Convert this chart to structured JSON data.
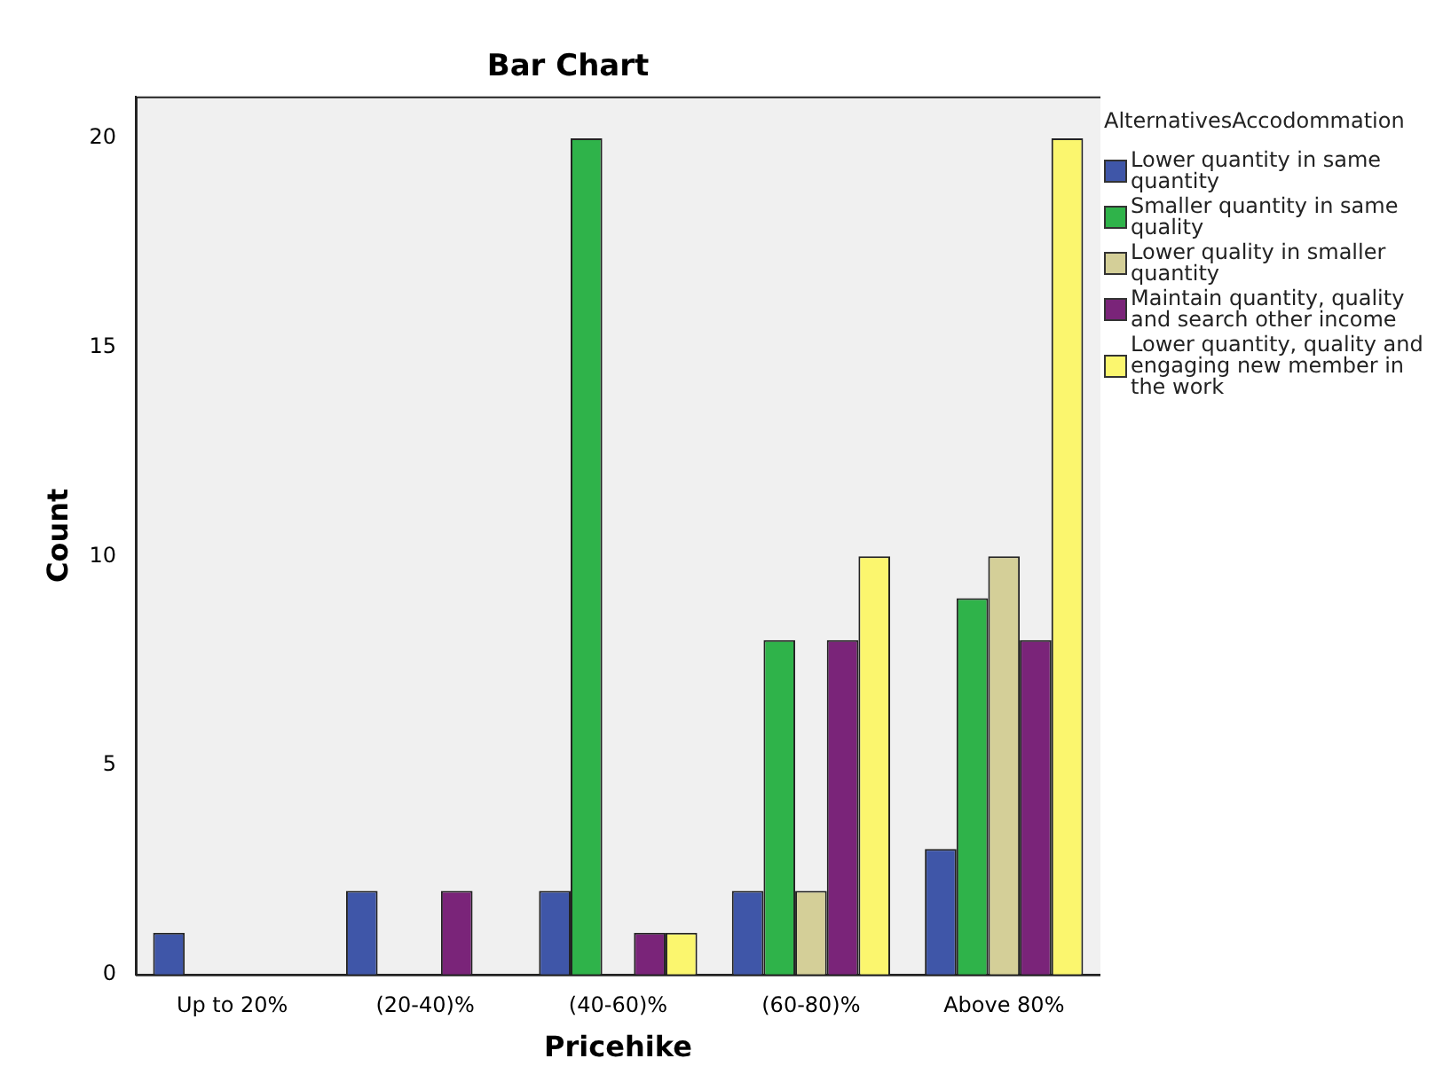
{
  "chart_data": {
    "type": "bar",
    "title": "Bar Chart",
    "xlabel": "Pricehike",
    "ylabel": "Count",
    "legend_title": "AlternativesAccodommation",
    "legend": "right",
    "grid": false,
    "categories": [
      "Up to 20%",
      "(20-40)%",
      "(40-60)%",
      "(60-80)%",
      "Above 80%"
    ],
    "ylim": [
      0,
      21
    ],
    "yticks": [
      0,
      5,
      10,
      15,
      20
    ],
    "series": [
      {
        "name": "Lower quantity in same quantity",
        "color": "#3f56a8",
        "values": [
          1,
          2,
          2,
          2,
          3
        ]
      },
      {
        "name": "Smaller quantity in same quality",
        "color": "#2fb34a",
        "values": [
          null,
          null,
          20,
          8,
          9
        ]
      },
      {
        "name": "Lower quality in smaller quantity",
        "color": "#d4cf98",
        "values": [
          null,
          null,
          null,
          2,
          10
        ]
      },
      {
        "name": "Maintain quantity, quality and search other income",
        "color": "#7a2479",
        "values": [
          null,
          2,
          1,
          8,
          8
        ]
      },
      {
        "name": "Lower quantity, quality and engaging new member in the work",
        "color": "#fbf66e",
        "values": [
          null,
          null,
          1,
          10,
          20
        ]
      }
    ]
  }
}
